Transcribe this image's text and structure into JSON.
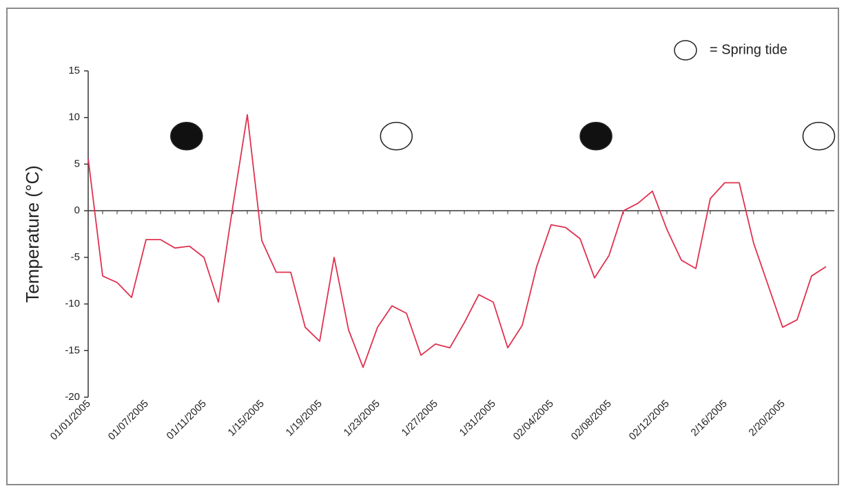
{
  "chart_data": {
    "type": "line",
    "y_label": "Temperature (°C)",
    "categories": [
      "01/01/2005",
      null,
      null,
      null,
      "01/07/2005",
      null,
      null,
      null,
      "01/11/2005",
      null,
      null,
      null,
      "1/15/2005",
      null,
      null,
      null,
      "1/19/2005",
      null,
      null,
      null,
      "1/23/2005",
      null,
      null,
      null,
      "1/27/2005",
      null,
      null,
      null,
      "1/31/2005",
      null,
      null,
      null,
      "02/04/2005",
      null,
      null,
      null,
      "02/08/2005",
      null,
      null,
      null,
      "02/12/2005",
      null,
      null,
      null,
      "2/16/2005",
      null,
      null,
      null,
      "2/20/2005",
      null,
      null,
      null
    ],
    "series": [
      {
        "color": "#e0304e",
        "values": [
          5.6,
          -7,
          -7.7,
          -9.3,
          -3.1,
          -3.1,
          -4,
          -3.8,
          -5,
          -9.8,
          0.5,
          10.3,
          -3.2,
          -6.6,
          -6.6,
          -12.5,
          -14,
          -5,
          -12.8,
          -16.8,
          -12.5,
          -10.2,
          -11,
          -15.5,
          -14.3,
          -14.7,
          -12,
          -9,
          -9.8,
          -14.7,
          -12.3,
          -6,
          -1.5,
          -1.8,
          -3,
          -7.2,
          -4.8,
          0,
          0.8,
          2.1,
          -2,
          -5.3,
          -6.2,
          1.3,
          3,
          3,
          -3.5,
          -8,
          -12.5,
          -11.7,
          -7,
          -6
        ]
      }
    ],
    "ylim": [
      -20,
      15
    ],
    "yticks": [
      -20,
      -15,
      -10,
      -5,
      0,
      5,
      10,
      15
    ],
    "tide_markers": [
      {
        "index": 6.8,
        "value": 8,
        "filled": true
      },
      {
        "index": 21.3,
        "value": 8,
        "filled": false
      },
      {
        "index": 35.1,
        "value": 8,
        "filled": true
      },
      {
        "index": 50.5,
        "value": 8,
        "filled": false
      }
    ],
    "legend_label": "= Spring tide"
  }
}
